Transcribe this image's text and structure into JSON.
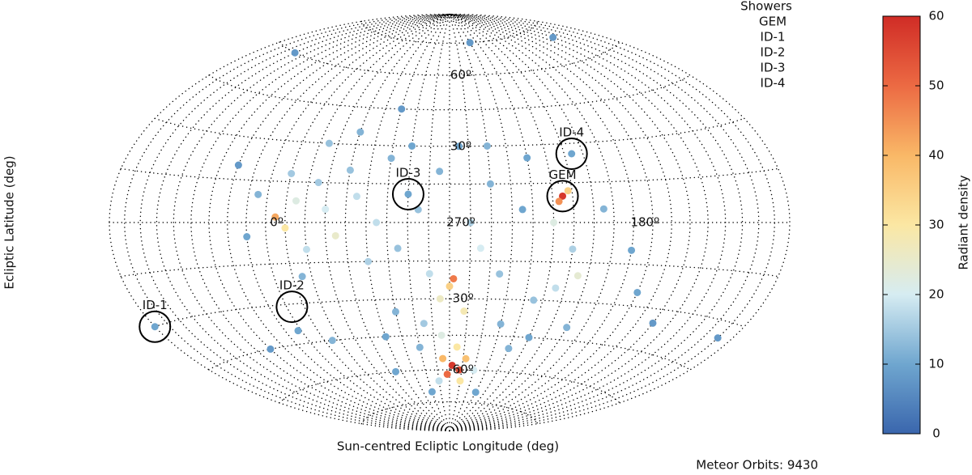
{
  "chart_data": {
    "type": "scatter",
    "xlabel": "Sun-centred Ecliptic Longitude (deg)",
    "ylabel": "Ecliptic Latitude (deg)",
    "footer": "Meteor Orbits: 9430",
    "legend_title": "Showers",
    "colorbar_label": "Radiant density",
    "clim": [
      0,
      60
    ],
    "cticks": [
      0,
      10,
      20,
      30,
      40,
      50,
      60
    ],
    "cmap": [
      "#3a66ad",
      "#6fa6cf",
      "#d6ecf2",
      "#fbe7a3",
      "#f9b867",
      "#ec6a43",
      "#d02c26"
    ],
    "grid_labels": [
      {
        "lon": 270,
        "lat": 60,
        "label": "60º"
      },
      {
        "lon": 270,
        "lat": 30,
        "label": "30º"
      },
      {
        "lon": 0,
        "lat": 0,
        "label": "0º"
      },
      {
        "lon": 270,
        "lat": 0,
        "label": "270º"
      },
      {
        "lon": 180,
        "lat": 0,
        "label": "180º"
      },
      {
        "lon": 270,
        "lat": -30,
        "label": "-30º"
      },
      {
        "lon": 270,
        "lat": -60,
        "label": "-60º"
      }
    ],
    "showers": [
      {
        "name": "GEM",
        "lon": 215,
        "lat": 10
      },
      {
        "name": "ID-1",
        "lon": 90,
        "lat": -30
      },
      {
        "name": "ID-2",
        "lon": 357,
        "lat": -31
      },
      {
        "name": "ID-3",
        "lon": 290,
        "lat": 11
      },
      {
        "name": "ID-4",
        "lon": 206,
        "lat": 26
      }
    ],
    "x": [
      355,
      350,
      345,
      340,
      335,
      330,
      325,
      320,
      315,
      310,
      350,
      345,
      5,
      10,
      300,
      305,
      295,
      290,
      285,
      280,
      275,
      270,
      268,
      262,
      275,
      265,
      268,
      262,
      272,
      258,
      275,
      260,
      280,
      250,
      255,
      260,
      250,
      245,
      240,
      285,
      290,
      230,
      235,
      300,
      310,
      215,
      217,
      212,
      220,
      210,
      215,
      205,
      225,
      200,
      220,
      206,
      195,
      230,
      250,
      265,
      275,
      300,
      320,
      335,
      2,
      345,
      315,
      290,
      240,
      180,
      170,
      150,
      100,
      90,
      130,
      60,
      240,
      30,
      20,
      290
    ],
    "y": [
      2,
      -2,
      8,
      -10,
      15,
      5,
      -5,
      20,
      10,
      -15,
      18,
      -20,
      10,
      -5,
      25,
      0,
      -10,
      30,
      5,
      -20,
      -30,
      -25,
      -22,
      -35,
      -45,
      -50,
      -58,
      -60,
      -62,
      -55,
      -55,
      -65,
      -65,
      -60,
      -10,
      0,
      15,
      -20,
      -40,
      -40,
      -50,
      -50,
      5,
      -35,
      -45,
      10,
      8,
      12,
      0,
      -10,
      -25,
      -20,
      -30,
      -40,
      -45,
      26,
      5,
      25,
      30,
      30,
      20,
      45,
      35,
      30,
      -40,
      -45,
      -60,
      -70,
      -70,
      -10,
      -25,
      -35,
      -35,
      -30,
      70,
      60,
      75,
      -45,
      20,
      11
    ],
    "density": [
      42,
      30,
      22,
      18,
      15,
      20,
      25,
      14,
      18,
      16,
      15,
      12,
      12,
      10,
      12,
      18,
      14,
      10,
      14,
      18,
      26,
      35,
      48,
      28,
      22,
      30,
      58,
      55,
      50,
      38,
      40,
      30,
      18,
      20,
      20,
      16,
      12,
      14,
      12,
      15,
      12,
      12,
      10,
      12,
      10,
      58,
      45,
      35,
      22,
      16,
      18,
      24,
      14,
      12,
      10,
      10,
      12,
      10,
      12,
      10,
      12,
      8,
      12,
      14,
      10,
      12,
      10,
      10,
      10,
      10,
      10,
      8,
      8,
      10,
      8,
      8,
      8,
      8,
      8,
      10
    ]
  }
}
